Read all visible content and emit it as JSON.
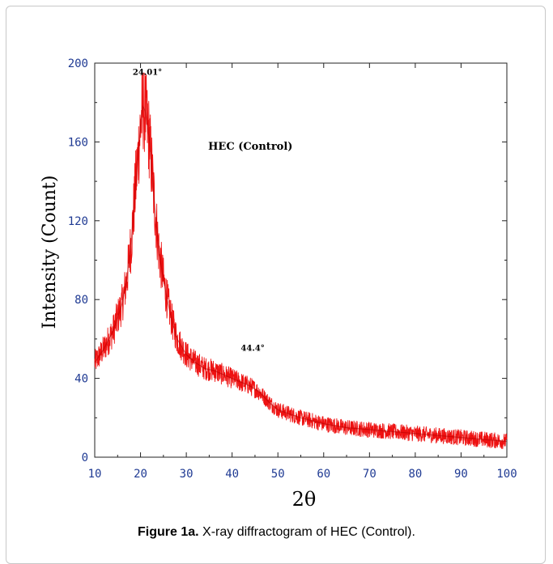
{
  "figure": {
    "caption_label": "Figure 1a.",
    "caption_text": " X-ray diffractogram of HEC (Control)."
  },
  "colors": {
    "trace": "#ee1111",
    "trace_dark": "#b30000",
    "tick_labels": "#1f3a93",
    "axis": "#222222"
  },
  "chart_data": {
    "type": "line",
    "title": "",
    "xlabel": "2θ",
    "ylabel": "Intensity (Count)",
    "xlim": [
      10,
      100
    ],
    "ylim": [
      0,
      200
    ],
    "x_ticks": [
      10,
      20,
      30,
      40,
      50,
      60,
      70,
      80,
      90,
      100
    ],
    "y_ticks": [
      0,
      40,
      80,
      120,
      160,
      200
    ],
    "grid": false,
    "legend": "none",
    "annotations": [
      {
        "text": "HEC (Control)",
        "x": 44,
        "y": 156
      },
      {
        "text": "24.01°",
        "x": 21.5,
        "y": 194
      },
      {
        "text": "44.4°",
        "x": 44.5,
        "y": 54
      }
    ],
    "series": [
      {
        "x": [
          10,
          12,
          14,
          16,
          17,
          18,
          19,
          20,
          20.5,
          21,
          22,
          23,
          24,
          25,
          26,
          27,
          28,
          30,
          32,
          34,
          36,
          38,
          40,
          42,
          44,
          46,
          48,
          50,
          55,
          60,
          65,
          70,
          75,
          80,
          85,
          90,
          95,
          100
        ],
        "y": [
          48,
          55,
          64,
          78,
          90,
          110,
          140,
          168,
          178,
          176,
          160,
          130,
          105,
          90,
          78,
          68,
          60,
          52,
          48,
          45,
          44,
          42,
          40,
          38,
          36,
          33,
          28,
          24,
          20,
          17,
          15,
          14,
          13,
          12,
          11,
          10,
          9,
          8
        ]
      }
    ]
  }
}
